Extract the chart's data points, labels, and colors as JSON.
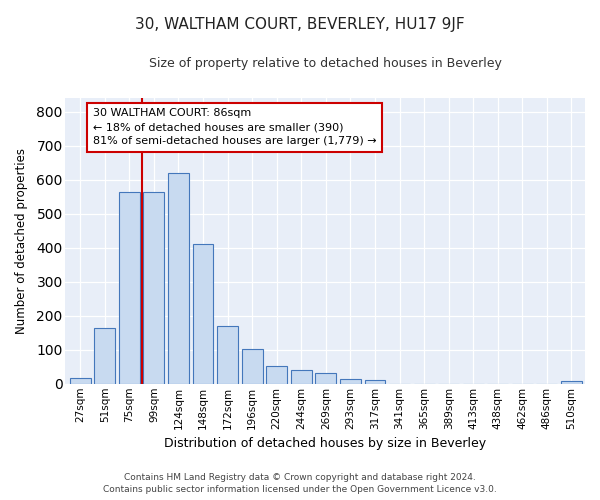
{
  "title": "30, WALTHAM COURT, BEVERLEY, HU17 9JF",
  "subtitle": "Size of property relative to detached houses in Beverley",
  "xlabel": "Distribution of detached houses by size in Beverley",
  "ylabel": "Number of detached properties",
  "bar_color": "#c8daf0",
  "bar_edge_color": "#4477bb",
  "categories": [
    "27sqm",
    "51sqm",
    "75sqm",
    "99sqm",
    "124sqm",
    "148sqm",
    "172sqm",
    "196sqm",
    "220sqm",
    "244sqm",
    "269sqm",
    "293sqm",
    "317sqm",
    "341sqm",
    "365sqm",
    "389sqm",
    "413sqm",
    "438sqm",
    "462sqm",
    "486sqm",
    "510sqm"
  ],
  "values": [
    18,
    165,
    563,
    565,
    620,
    412,
    170,
    103,
    51,
    40,
    32,
    14,
    10,
    0,
    0,
    0,
    0,
    0,
    0,
    0,
    8
  ],
  "ylim": [
    0,
    840
  ],
  "yticks": [
    0,
    100,
    200,
    300,
    400,
    500,
    600,
    700,
    800
  ],
  "vline_color": "#cc0000",
  "annotation_text": "30 WALTHAM COURT: 86sqm\n← 18% of detached houses are smaller (390)\n81% of semi-detached houses are larger (1,779) →",
  "annotation_box_color": "#ffffff",
  "annotation_box_edge": "#cc0000",
  "footnote": "Contains HM Land Registry data © Crown copyright and database right 2024.\nContains public sector information licensed under the Open Government Licence v3.0.",
  "bg_color": "#ffffff",
  "plot_bg_color": "#e8eef8",
  "grid_color": "#ffffff"
}
